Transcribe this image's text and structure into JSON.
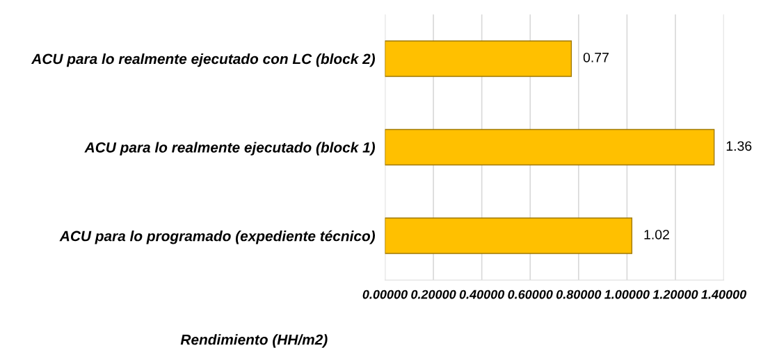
{
  "chart_data": {
    "type": "bar",
    "orientation": "horizontal",
    "xlabel": "Rendimiento (HH/m2)",
    "categories": [
      "ACU para lo realmente ejecutado con LC (block 2)",
      "ACU para lo realmente ejecutado (block 1)",
      "ACU para lo programado (expediente técnico)"
    ],
    "values": [
      0.77,
      1.36,
      1.02
    ],
    "color": "#ffc000",
    "data_labels": true,
    "xlim": [
      0,
      1.4
    ],
    "xticks": [
      {
        "value": 0,
        "label": "0.00000"
      },
      {
        "value": 0.2,
        "label": "0.20000"
      },
      {
        "value": 0.4,
        "label": "0.40000"
      },
      {
        "value": 0.6,
        "label": "0.60000"
      },
      {
        "value": 0.8,
        "label": "0.80000"
      },
      {
        "value": 1.0,
        "label": "1.00000"
      },
      {
        "value": 1.2,
        "label": "1.20000"
      },
      {
        "value": 1.4,
        "label": "1.40000"
      }
    ],
    "grid": "x"
  }
}
